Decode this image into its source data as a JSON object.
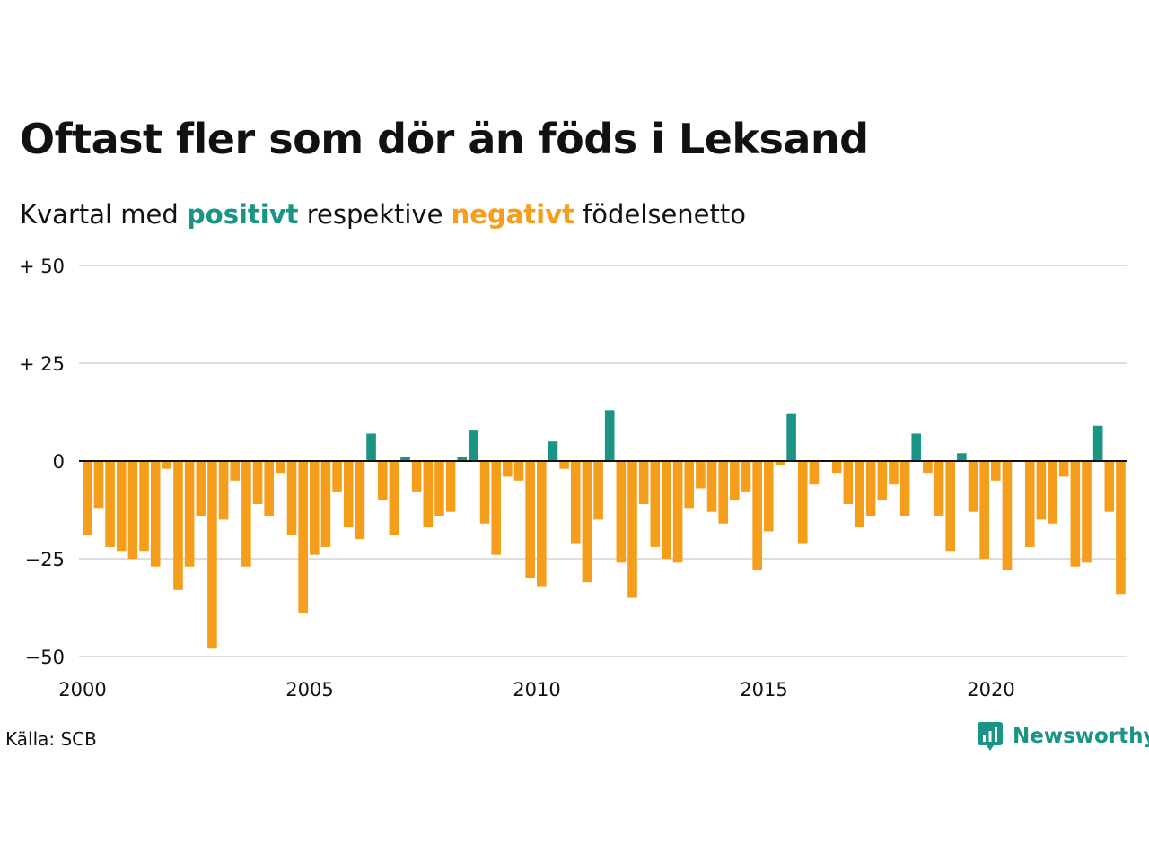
{
  "header": {
    "title": "Oftast fler som dör än föds i Leksand",
    "subtitle_pre": "Kvartal med",
    "subtitle_pos": "positivt",
    "subtitle_mid": "respektive",
    "subtitle_neg": "negativt",
    "subtitle_post": "födelsenetto"
  },
  "footer": {
    "source": "Källa: SCB",
    "brand": "Newsworthy"
  },
  "colors": {
    "positive": "#1a9485",
    "negative": "#f59e1b",
    "grid": "#dddddd",
    "zero": "#111111"
  },
  "chart_data": {
    "type": "bar",
    "x_start": "2000Q1",
    "x_end": "2022Q4",
    "y_ticks": [
      50,
      25,
      0,
      -25,
      -50
    ],
    "y_tick_labels": [
      "+ 50",
      "+ 25",
      "0",
      "−25",
      "−50"
    ],
    "ylim": [
      -50,
      50
    ],
    "x_ticks": [
      2000,
      2005,
      2010,
      2015,
      2020
    ],
    "x_tick_labels": [
      "2000",
      "2005",
      "2010",
      "2015",
      "2020"
    ],
    "grid": true,
    "series": [
      {
        "values": [
          -19,
          -12,
          -22,
          -23,
          -25,
          -23,
          -27,
          -2,
          -33,
          -27,
          -14,
          -48,
          -15,
          -5,
          -27,
          -11,
          -14,
          -3,
          -19,
          -39,
          -24,
          -22,
          -8,
          -17,
          -20,
          7,
          -10,
          -19,
          1,
          -8,
          -17,
          -14,
          -13,
          1,
          8,
          -16,
          -24,
          -4,
          -5,
          -30,
          -32,
          5,
          -2,
          -21,
          -31,
          -15,
          13,
          -26,
          -35,
          -11,
          -22,
          -25,
          -26,
          -12,
          -7,
          -13,
          -16,
          -10,
          -8,
          -28,
          -18,
          -1,
          12,
          -21,
          -6,
          0,
          -3,
          -11,
          -17,
          -14,
          -10,
          -6,
          -14,
          7,
          -3,
          -14,
          -23,
          2,
          -13,
          -25,
          -5,
          -28,
          0,
          -22,
          -15,
          -16,
          -4,
          -27,
          -26,
          9,
          -13,
          -34
        ]
      }
    ]
  }
}
